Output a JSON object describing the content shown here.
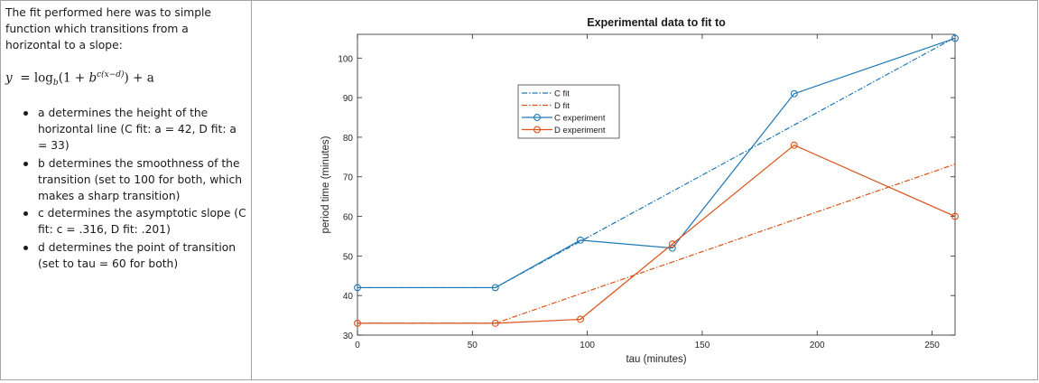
{
  "description": {
    "intro": "The fit performed here was to simple function which transitions from a horizontal to a slope:",
    "formula": {
      "lhs": "y",
      "log_base": "b",
      "inner_start": "(1 + ",
      "power_base": "b",
      "exponent": "c(x−d)",
      "tail": ") + a"
    },
    "bullets": [
      "a determines the height of the horizontal line (C fit: a = 42, D fit: a = 33)",
      "b determines the smoothness of the transition (set to 100 for both, which makes a sharp transition)",
      "c determines the asymptotic slope (C fit: c = .316, D fit: .201)",
      "d determines the point of transition (set to tau = 60 for both)"
    ]
  },
  "chart_data": {
    "type": "line",
    "title": "Experimental data to fit to",
    "xlabel": "tau (minutes)",
    "ylabel": "period time (minutes)",
    "xlim": [
      0,
      260
    ],
    "ylim": [
      30,
      106
    ],
    "xticks": [
      0,
      50,
      100,
      150,
      200,
      250
    ],
    "yticks": [
      30,
      40,
      50,
      60,
      70,
      80,
      90,
      100
    ],
    "grid": false,
    "legend_position": "top-left-inside",
    "colors": {
      "C": "#1f77b4",
      "D": "#d95319"
    },
    "series": [
      {
        "name": "C fit",
        "style": "dash-dot",
        "color": "#1f77b4",
        "x": [
          0,
          60,
          260
        ],
        "y": [
          42,
          42,
          105.2
        ]
      },
      {
        "name": "D fit",
        "style": "dash-dot",
        "color": "#d95319",
        "x": [
          0,
          60,
          260
        ],
        "y": [
          33,
          33,
          73.2
        ]
      },
      {
        "name": "C experiment",
        "style": "solid-circle",
        "color": "#1f77b4",
        "x": [
          0,
          60,
          97,
          137,
          190,
          260
        ],
        "y": [
          42,
          42,
          54,
          52,
          91,
          105
        ]
      },
      {
        "name": "D experiment",
        "style": "solid-circle",
        "color": "#d95319",
        "x": [
          0,
          60,
          97,
          137,
          190,
          260
        ],
        "y": [
          33,
          33,
          34,
          53,
          78,
          60
        ]
      }
    ]
  }
}
